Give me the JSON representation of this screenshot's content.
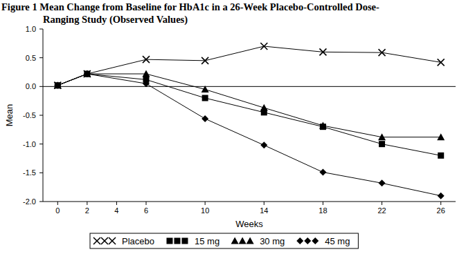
{
  "chart_data": {
    "type": "line",
    "title": [
      "Figure 1 Mean Change from Baseline for HbA1c in a 26-Week Placebo-Controlled Dose-",
      "Ranging Study (Observed Values)"
    ],
    "x_label": "Weeks",
    "y_label": "Mean",
    "x": [
      0,
      2,
      6,
      10,
      14,
      18,
      22,
      26
    ],
    "xlim": [
      -1,
      27
    ],
    "xticks": [
      0,
      2,
      4,
      6,
      10,
      14,
      18,
      22,
      26
    ],
    "ylim": [
      -2,
      1
    ],
    "yticks": [
      {
        "value": 1,
        "label": "1.0"
      },
      0.5,
      {
        "value": 0,
        "label": "0.0"
      },
      -0.5,
      {
        "value": -1,
        "label": "-1.0"
      },
      -1.5,
      {
        "value": -2,
        "label": "-2.0"
      }
    ],
    "grid": false,
    "legend": "bottom",
    "series": [
      {
        "name": "Placebo",
        "color": "#000000",
        "marker": "x",
        "values": [
          0.02,
          0.22,
          0.47,
          0.45,
          0.7,
          0.6,
          0.59,
          0.42
        ]
      },
      {
        "name": "15 mg",
        "color": "#000000",
        "marker": "square",
        "values": [
          0.02,
          0.22,
          0.12,
          -0.2,
          -0.45,
          -0.7,
          -1.0,
          -1.2
        ]
      },
      {
        "name": "30 mg",
        "color": "#000000",
        "marker": "triangle",
        "values": [
          0.02,
          0.22,
          0.22,
          -0.05,
          -0.37,
          -0.68,
          -0.88,
          -0.88
        ]
      },
      {
        "name": "45 mg",
        "color": "#000000",
        "marker": "diamond",
        "values": [
          0.02,
          0.22,
          0.05,
          -0.56,
          -1.02,
          -1.49,
          -1.68,
          -1.9
        ]
      }
    ]
  }
}
